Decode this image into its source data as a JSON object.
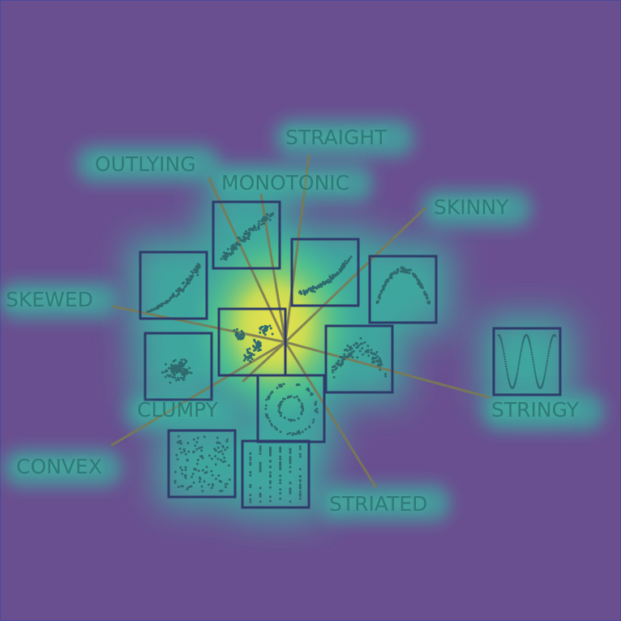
{
  "title": "",
  "colors": {
    "background": "#6a4f90",
    "heat_outer": "#3bb0a0",
    "heat_mid": "#52c98a",
    "heat_core": "#f2e84c",
    "axis_line": "#7a7a55",
    "box_stroke": "#2e3a6a",
    "dot": "#2f6a6e",
    "label": "#2f7a78"
  },
  "labels": {
    "straight": "STRAIGHT",
    "outlying": "OUTLYING",
    "monotonic": "MONOTONIC",
    "skinny": "SKINNY",
    "skewed": "SKEWED",
    "clumpy": "CLUMPY",
    "convex": "CONVEX",
    "striated": "STRIATED",
    "stringy": "STRINGY"
  },
  "thumbnails": [
    {
      "pattern": "linear-up"
    },
    {
      "pattern": "skewed-up"
    },
    {
      "pattern": "curve-up"
    },
    {
      "pattern": "arch"
    },
    {
      "pattern": "clumps"
    },
    {
      "pattern": "spread-cloud"
    },
    {
      "pattern": "noisy-arch"
    },
    {
      "pattern": "ring"
    },
    {
      "pattern": "uniform"
    },
    {
      "pattern": "striated"
    },
    {
      "pattern": "sine"
    }
  ]
}
